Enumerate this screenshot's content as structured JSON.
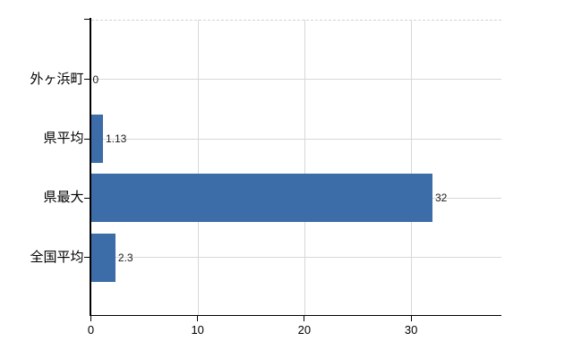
{
  "chart": {
    "background": "#ffffff",
    "bar_color": "#3d6da8",
    "axis_color": "#000000",
    "gridline_color": "#d6d9d4",
    "dashed_line_color": "#d3d1dc",
    "value_label_color": "#1a1a1a",
    "text_color": "#000000"
  },
  "chart_data": {
    "type": "bar",
    "orientation": "horizontal",
    "title": "",
    "xlabel": "",
    "ylabel": "",
    "categories": [
      "外ヶ浜町",
      "県平均",
      "県最大",
      "全国平均"
    ],
    "values": [
      0,
      1.13,
      32,
      2.3
    ],
    "value_labels": [
      "0",
      "1.13",
      "32",
      "2.3"
    ],
    "x_ticks": [
      "0",
      "10",
      "20",
      "30"
    ],
    "x_tick_values": [
      0,
      10,
      20,
      30
    ],
    "xlim": [
      0,
      38.5
    ],
    "grid": true,
    "grid_style": "solid horizontal category lines, vertical tick lines, dashed top border",
    "legend": false
  }
}
